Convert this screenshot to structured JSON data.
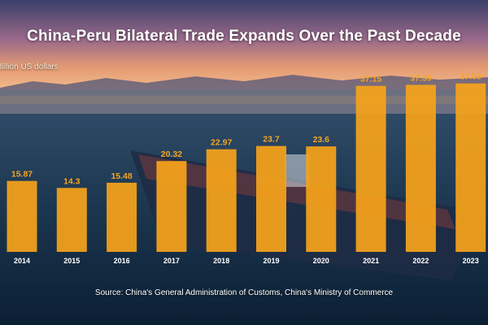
{
  "header": {
    "title": "China-Peru Bilateral Trade Expands Over the Past Decade"
  },
  "footer": {
    "source": "Source: China's General Administration of Customs, China's Ministry of Commerce"
  },
  "colors": {
    "bar": "#f5a21b",
    "label": "#f5a623"
  },
  "chart_data": {
    "type": "bar",
    "title": "China-Peru Bilateral Trade Expands Over the Past Decade",
    "ylabel": "Billion US dollars",
    "xlabel": "",
    "categories": [
      "2014",
      "2015",
      "2016",
      "2017",
      "2018",
      "2019",
      "2020",
      "2021",
      "2022",
      "2023"
    ],
    "values": [
      15.87,
      14.3,
      15.48,
      20.32,
      22.97,
      23.7,
      23.6,
      37.15,
      37.39,
      37.69
    ],
    "ylim": [
      0,
      40
    ],
    "grid": false,
    "legend": "none"
  }
}
